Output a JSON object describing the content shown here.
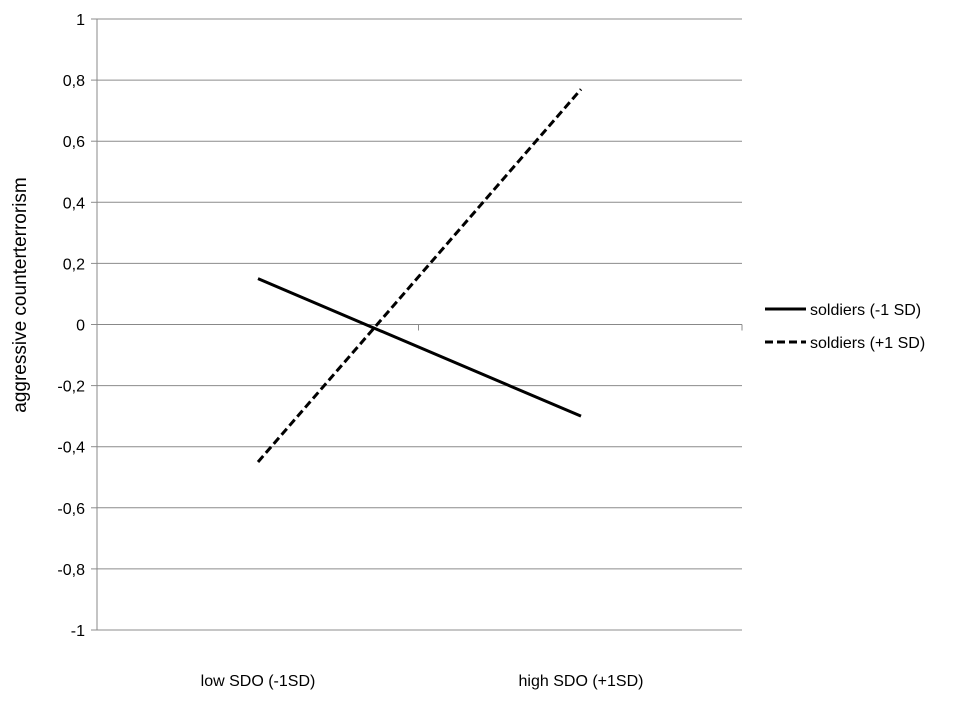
{
  "chart_data": {
    "type": "line",
    "title": "",
    "xlabel": "",
    "ylabel": "aggressive counterterrorism",
    "categories": [
      "low SDO (-1SD)",
      "high SDO (+1SD)"
    ],
    "ylim": [
      -1,
      1
    ],
    "yticks": [
      1,
      0.8,
      0.6,
      0.4,
      0.2,
      0,
      -0.2,
      -0.4,
      -0.6,
      -0.8,
      -1
    ],
    "ytick_labels": [
      "1",
      "0,8",
      "0,6",
      "0,4",
      "0,2",
      "0",
      "-0,2",
      "-0,4",
      "-0,6",
      "-0,8",
      "-1"
    ],
    "grid": true,
    "legend_position": "right",
    "series": [
      {
        "name": "soldiers (-1 SD)",
        "values": [
          0.15,
          -0.3
        ],
        "style": "solid",
        "color": "#000000"
      },
      {
        "name": "soldiers (+1 SD)",
        "values": [
          -0.45,
          0.77
        ],
        "style": "dashed",
        "color": "#000000"
      }
    ]
  }
}
